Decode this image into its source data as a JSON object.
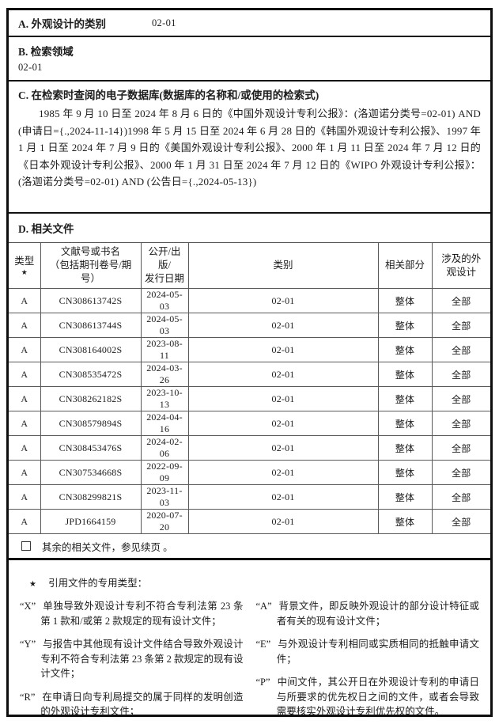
{
  "sections": {
    "a": {
      "label": "A. 外观设计的类别",
      "value": "02-01"
    },
    "b": {
      "label": "B. 检索领域",
      "value": "02-01"
    },
    "c": {
      "label": "C. 在检索时查阅的电子数据库(数据库的名称和/或使用的检索式)",
      "body": "1985 年 9 月 10 日至 2024 年 8 月 6 日的《中国外观设计专利公报》：(洛迦诺分类号=02-01) AND (申请日={.,2024-11-14})1998 年 5 月 15 日至 2024 年 6 月 28 日的《韩国外观设计专利公报》、1997 年 1 月 1 日至 2024 年 7 月 9 日的《美国外观设计专利公报》、2000 年 1 月 11 日至 2024 年 7 月 12 日的《日本外观设计专利公报》、2000 年 1 月 31 日至 2024 年 7 月 12 日的《WIPO 外观设计专利公报》：(洛迦诺分类号=02-01) AND (公告日={.,2024-05-13})"
    },
    "d": {
      "label": "D. 相关文件"
    }
  },
  "table": {
    "headers": [
      {
        "line1": "类型",
        "line2": "★"
      },
      {
        "line1": "文献号或书名",
        "line2": "（包括期刊卷号/期号）"
      },
      {
        "line1": "公开/出版/",
        "line2": "发行日期"
      },
      {
        "line1": "类别",
        "line2": ""
      },
      {
        "line1": "相关部分",
        "line2": ""
      },
      {
        "line1": "涉及的外",
        "line2": "观设计"
      }
    ],
    "rows": [
      [
        "A",
        "CN308613742S",
        "2024-05-03",
        "02-01",
        "整体",
        "全部"
      ],
      [
        "A",
        "CN308613744S",
        "2024-05-03",
        "02-01",
        "整体",
        "全部"
      ],
      [
        "A",
        "CN308164002S",
        "2023-08-11",
        "02-01",
        "整体",
        "全部"
      ],
      [
        "A",
        "CN308535472S",
        "2024-03-26",
        "02-01",
        "整体",
        "全部"
      ],
      [
        "A",
        "CN308262182S",
        "2023-10-13",
        "02-01",
        "整体",
        "全部"
      ],
      [
        "A",
        "CN308579894S",
        "2024-04-16",
        "02-01",
        "整体",
        "全部"
      ],
      [
        "A",
        "CN308453476S",
        "2024-02-06",
        "02-01",
        "整体",
        "全部"
      ],
      [
        "A",
        "CN307534668S",
        "2022-09-09",
        "02-01",
        "整体",
        "全部"
      ],
      [
        "A",
        "CN308299821S",
        "2023-11-03",
        "02-01",
        "整体",
        "全部"
      ],
      [
        "A",
        "JPD1664159",
        "2020-07-20",
        "02-01",
        "整体",
        "全部"
      ]
    ]
  },
  "more_row": {
    "text": "其余的相关文件，参见续页 。"
  },
  "footnote": {
    "star": "★",
    "title": "引用文件的专用类型：",
    "left": [
      {
        "code": "“X”",
        "text": "单独导致外观设计专利不符合专利法第 23 条第 1 款和/或第 2 款规定的现有设计文件；"
      },
      {
        "code": "“Y”",
        "text": "与报告中其他现有设计文件结合导致外观设计专利不符合专利法第 23 条第 2 款规定的现有设计文件；"
      },
      {
        "code": "“R”",
        "text": "在申请日向专利局提交的属于同样的发明创造的外观设计专利文件；"
      }
    ],
    "right": [
      {
        "code": "“A”",
        "text": "背景文件，即反映外观设计的部分设计特征或者有关的现有设计文件；"
      },
      {
        "code": "“E”",
        "text": "与外观设计专利相同或实质相同的抵触申请文件；"
      },
      {
        "code": "“P”",
        "text": "中间文件，其公开日在外观设计专利的申请日与所要求的优先权日之间的文件，或者会导致需要核实外观设计专利优先权的文件。"
      }
    ]
  },
  "colors": {
    "border": "#0d0d0d",
    "grid": "#595959",
    "text": "#1c1c1c"
  }
}
